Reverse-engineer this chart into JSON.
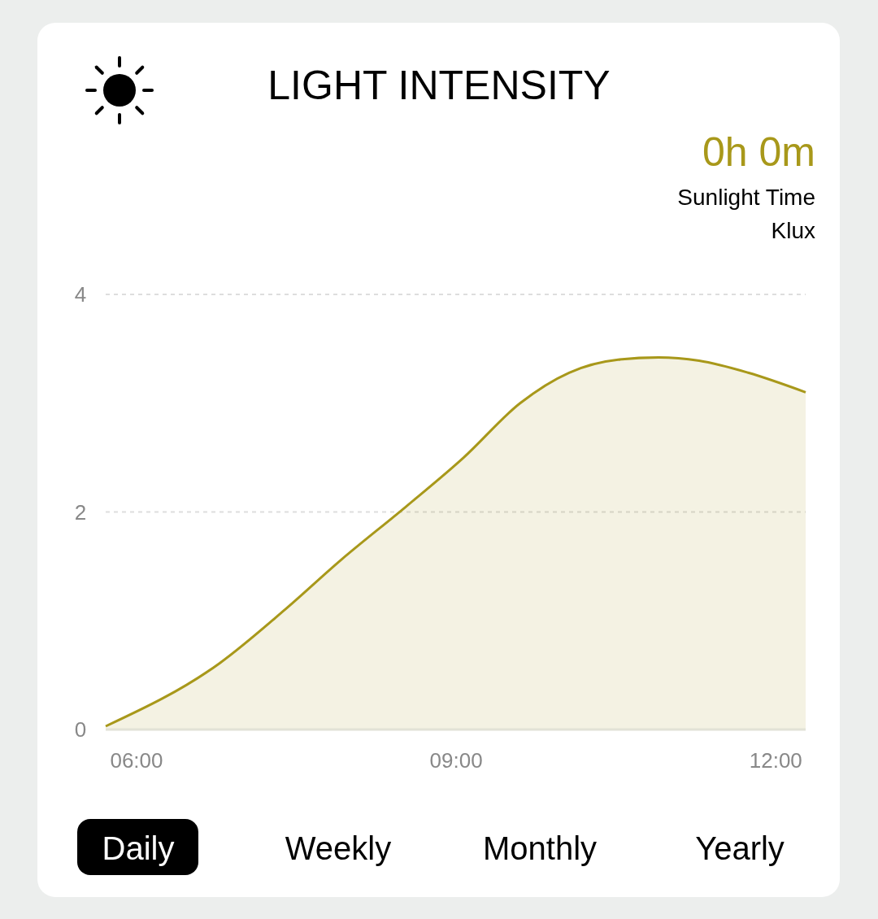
{
  "chart_data": {
    "type": "area",
    "title": "LIGHT INTENSITY",
    "ylabel": "Klux",
    "annotations": [
      "0h 0m",
      "Sunlight Time",
      "Daily",
      "Weekly",
      "Monthly",
      "Yearly"
    ],
    "x": [
      5.71,
      6.78,
      7.39,
      7.92,
      8.53,
      9.07,
      9.6,
      10.06,
      10.52,
      10.9,
      11.28,
      11.74,
      12.28
    ],
    "series": [
      {
        "color": "#a8981a",
        "values": [
          0.03,
          0.61,
          1.1,
          1.56,
          2.05,
          2.5,
          3.0,
          3.28,
          3.4,
          3.42,
          3.39,
          3.28,
          3.1
        ]
      }
    ],
    "xlim": [
      5.71,
      12.28
    ],
    "xticks": [
      {
        "value": 6,
        "label": "06:00"
      },
      {
        "value": 9,
        "label": "09:00"
      },
      {
        "value": 12,
        "label": "12:00"
      }
    ],
    "ylim": [
      0,
      4
    ],
    "yticks": [
      0,
      2,
      4
    ],
    "grid": "y",
    "marker": "none"
  }
}
